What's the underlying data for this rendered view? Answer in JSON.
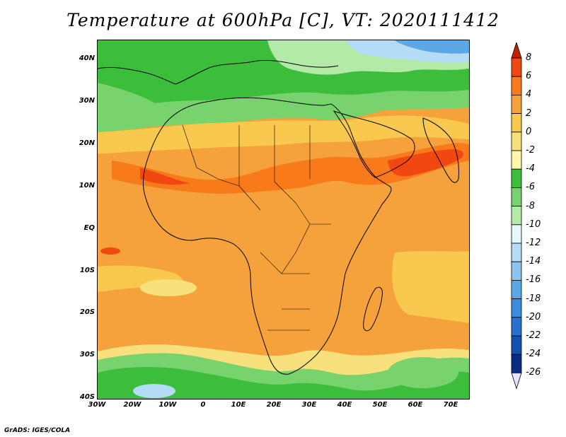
{
  "title": "Temperature at 600hPa [C], VT: 2020111412",
  "credit": "GrADS: IGES/COLA",
  "map": {
    "lon_range": [
      -30,
      75
    ],
    "lat_range": [
      -40,
      45
    ],
    "lat_labels": [
      "40N",
      "30N",
      "20N",
      "10N",
      "EQ",
      "10S",
      "20S",
      "30S",
      "40S"
    ],
    "lon_labels": [
      "30W",
      "20W",
      "10W",
      "0",
      "10E",
      "20E",
      "30E",
      "40E",
      "50E",
      "60E",
      "70E"
    ]
  },
  "colorbar": {
    "labels": [
      "8",
      "6",
      "4",
      "2",
      "0",
      "-2",
      "-4",
      "-6",
      "-8",
      "-10",
      "-12",
      "-14",
      "-16",
      "-18",
      "-20",
      "-22",
      "-24",
      "-26"
    ],
    "colors": [
      "#c81e00",
      "#f04810",
      "#f87a1a",
      "#f5a23c",
      "#f9c84e",
      "#f8e07c",
      "#fff6aa",
      "#3cbe3c",
      "#78d26e",
      "#b4eaa8",
      "#e2f8fa",
      "#b4dcf6",
      "#8cc4f0",
      "#5aa8e8",
      "#3a8ce0",
      "#2670d0",
      "#1450b4",
      "#0a2c82",
      "#0c1a5c"
    ]
  }
}
